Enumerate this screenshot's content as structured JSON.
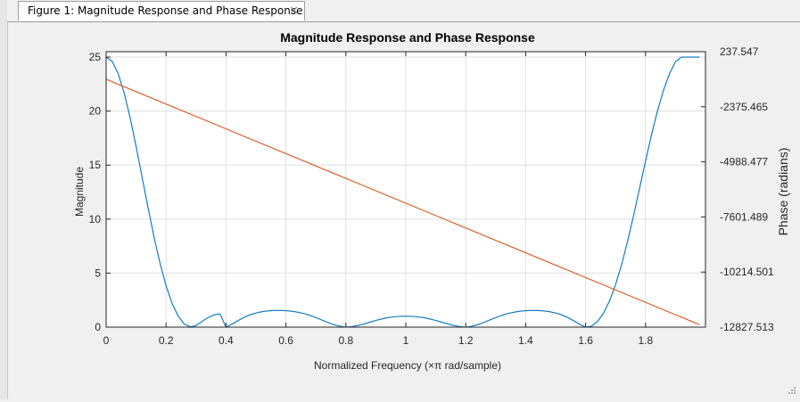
{
  "window": {
    "tab_title": "Figure 1: Magnitude Response and Phase Response",
    "close_glyph": "✕"
  },
  "chart_data": {
    "type": "line",
    "title": "Magnitude Response and Phase Response",
    "xlabel": "Normalized Frequency (×π rad/sample)",
    "ylabel": "Magnitude",
    "ylabel_right": "Phase (radians)",
    "xlim": [
      0,
      2
    ],
    "ylim": [
      0,
      25.5
    ],
    "ylim_right": [
      -12827.513,
      237.547
    ],
    "x_ticks": [
      0,
      0.2,
      0.4,
      0.6,
      0.8,
      1,
      1.2,
      1.4,
      1.6,
      1.8
    ],
    "x_tick_labels": [
      "0",
      "0.2",
      "0.4",
      "0.6",
      "0.8",
      "1",
      "1.2",
      "1.4",
      "1.6",
      "1.8"
    ],
    "y_ticks": [
      0,
      5,
      10,
      15,
      20,
      25
    ],
    "y_tick_labels": [
      "0",
      "5",
      "10",
      "15",
      "20",
      "25"
    ],
    "y_right_ticks": [
      237.547,
      -2375.465,
      -4988.477,
      -7601.489,
      -10214.501,
      -12827.513
    ],
    "y_right_tick_labels": [
      "237.547",
      "-2375.465",
      "-4988.477",
      "-7601.489",
      "-10214.501",
      "-12827.513"
    ],
    "grid": true,
    "series": [
      {
        "axis": "left",
        "color": "#0072bd",
        "x": [
          0,
          0.02,
          0.04,
          0.06,
          0.08,
          0.1,
          0.12,
          0.14,
          0.16,
          0.18,
          0.2,
          0.22,
          0.24,
          0.26,
          0.28,
          0.3,
          0.32,
          0.34,
          0.36,
          0.38,
          0.4,
          0.42,
          0.44,
          0.46,
          0.48,
          0.5,
          0.52,
          0.54,
          0.56,
          0.58,
          0.6,
          0.62,
          0.64,
          0.66,
          0.68,
          0.7,
          0.72,
          0.74,
          0.76,
          0.78,
          0.8,
          0.82,
          0.84,
          0.86,
          0.88,
          0.9,
          0.92,
          0.94,
          0.96,
          0.98,
          1,
          1.02,
          1.04,
          1.06,
          1.08,
          1.1,
          1.12,
          1.14,
          1.16,
          1.18,
          1.2,
          1.22,
          1.24,
          1.26,
          1.28,
          1.3,
          1.32,
          1.34,
          1.36,
          1.38,
          1.4,
          1.42,
          1.44,
          1.46,
          1.48,
          1.5,
          1.52,
          1.54,
          1.56,
          1.58,
          1.6,
          1.62,
          1.64,
          1.66,
          1.68,
          1.7,
          1.72,
          1.74,
          1.76,
          1.78,
          1.8,
          1.82,
          1.84,
          1.86,
          1.88,
          1.9,
          1.92,
          1.94,
          1.96,
          1.98
        ],
        "values": [
          25,
          24.61,
          23.48,
          21.69,
          19.39,
          16.73,
          13.89,
          11.04,
          8.33,
          5.9,
          3.83,
          2.2,
          1.04,
          0.3,
          0.03,
          0.14,
          0.53,
          0.89,
          1.14,
          1.23,
          0.0,
          0.28,
          0.6,
          0.9,
          1.14,
          1.31,
          1.43,
          1.5,
          1.54,
          1.54,
          1.52,
          1.47,
          1.38,
          1.26,
          1.09,
          0.88,
          0.66,
          0.43,
          0.23,
          0.08,
          0.0,
          0.05,
          0.15,
          0.3,
          0.46,
          0.62,
          0.76,
          0.88,
          0.95,
          1.0,
          1.01,
          1.0,
          0.95,
          0.88,
          0.76,
          0.62,
          0.46,
          0.3,
          0.15,
          0.05,
          0.0,
          0.08,
          0.23,
          0.43,
          0.66,
          0.88,
          1.09,
          1.26,
          1.38,
          1.47,
          1.52,
          1.54,
          1.54,
          1.5,
          1.43,
          1.31,
          1.14,
          0.9,
          0.6,
          0.28,
          0.0,
          0.09,
          0.53,
          1.3,
          2.43,
          3.93,
          5.77,
          7.93,
          10.32,
          12.84,
          15.38,
          17.81,
          20.03,
          21.94,
          23.47,
          24.58,
          25.0,
          25.0,
          25.0,
          25.0
        ]
      },
      {
        "axis": "right",
        "color": "#d95319",
        "x": [
          0,
          1.98
        ],
        "values": [
          -1070,
          -12710
        ]
      }
    ]
  }
}
